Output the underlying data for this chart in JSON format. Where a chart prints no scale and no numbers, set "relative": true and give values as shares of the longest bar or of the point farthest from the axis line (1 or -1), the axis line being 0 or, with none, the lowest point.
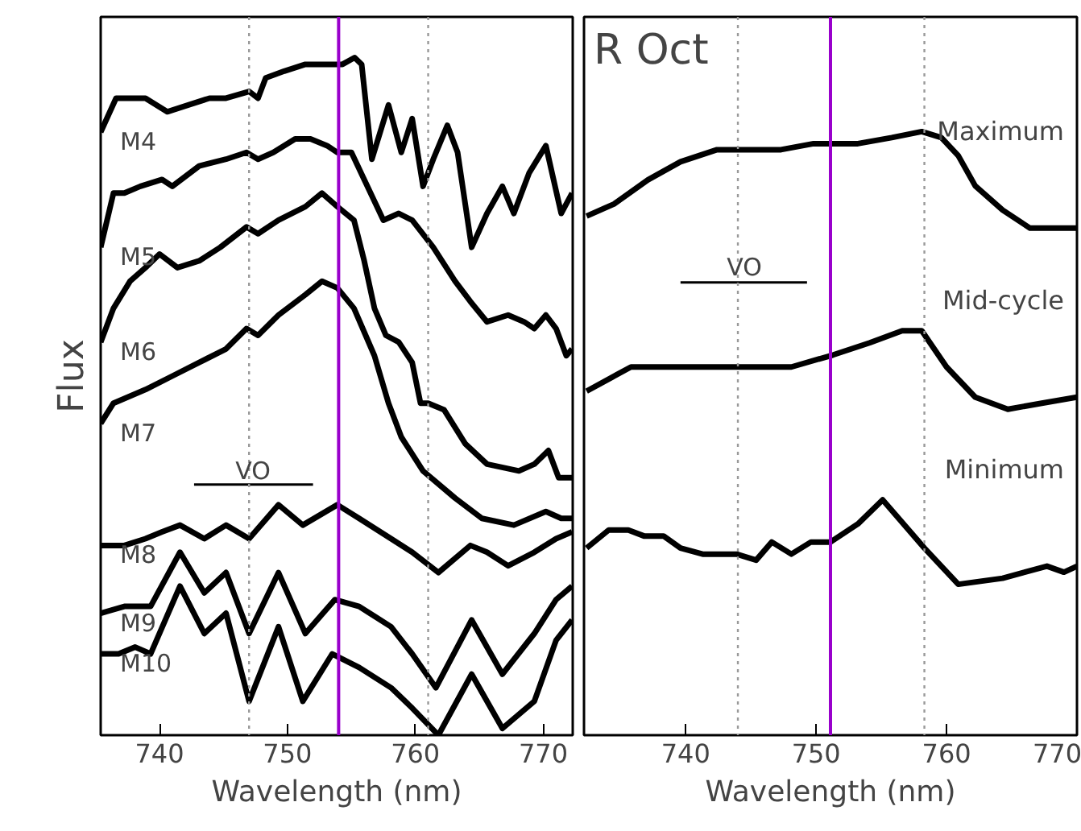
{
  "chart_data": [
    {
      "type": "line",
      "relative": true,
      "xlabel": "Wavelength (nm)",
      "ylabel": "Flux",
      "xlim": [
        735.4,
        772.3
      ],
      "xticks": [
        740,
        750,
        760,
        770
      ],
      "ref_lines": [
        {
          "axis": "x",
          "value": 747.0,
          "color": "#999999",
          "line_style": "dotted"
        },
        {
          "axis": "x",
          "value": 761.0,
          "color": "#999999",
          "line_style": "dotted"
        },
        {
          "axis": "x",
          "value": 754.0,
          "color": "#9900cc",
          "line_style": "solid"
        }
      ],
      "series": [
        {
          "name": "M4",
          "color": "#000000",
          "x": [
            735.4,
            736.6,
            737.25,
            738.9,
            740.6,
            742.25,
            743.9,
            745.2,
            747.0,
            747.7,
            748.3,
            749.75,
            751.4,
            753.1,
            754.3,
            755.25,
            755.8,
            756.6,
            757.9,
            758.9,
            759.75,
            760.6,
            761.4,
            762.5,
            763.3,
            764.4,
            765.6,
            766.8,
            767.7,
            768.9,
            770.2,
            771.4,
            772.25
          ],
          "values": [
            0.89,
            0.94,
            0.94,
            0.94,
            0.92,
            0.93,
            0.94,
            0.94,
            0.95,
            0.94,
            0.97,
            0.98,
            0.99,
            0.99,
            0.99,
            1.0,
            0.99,
            0.85,
            0.93,
            0.86,
            0.91,
            0.81,
            0.85,
            0.9,
            0.86,
            0.72,
            0.77,
            0.81,
            0.77,
            0.83,
            0.87,
            0.77,
            0.8
          ]
        },
        {
          "name": "M5",
          "color": "#000000",
          "x": [
            735.4,
            736.4,
            737.25,
            738.5,
            740.2,
            741.0,
            743.1,
            745.2,
            746.8,
            747.7,
            748.9,
            750.6,
            751.8,
            753.1,
            753.9,
            755.0,
            756.0,
            757.5,
            758.7,
            759.75,
            761.4,
            763.1,
            764.3,
            765.6,
            767.25,
            768.5,
            769.3,
            770.2,
            771.0,
            771.8,
            772.25
          ],
          "values": [
            0.72,
            0.8,
            0.8,
            0.81,
            0.82,
            0.81,
            0.84,
            0.85,
            0.86,
            0.85,
            0.86,
            0.88,
            0.88,
            0.87,
            0.86,
            0.86,
            0.82,
            0.76,
            0.77,
            0.76,
            0.72,
            0.67,
            0.64,
            0.61,
            0.62,
            0.61,
            0.6,
            0.62,
            0.6,
            0.56,
            0.57
          ]
        },
        {
          "name": "M6",
          "color": "#000000",
          "x": [
            735.4,
            736.4,
            737.7,
            738.9,
            740.0,
            741.4,
            743.1,
            744.75,
            746.8,
            747.7,
            749.3,
            751.4,
            752.7,
            753.9,
            755.2,
            756.0,
            756.8,
            757.7,
            758.7,
            759.75,
            760.4,
            761.0,
            762.25,
            763.9,
            765.6,
            768.1,
            769.3,
            770.4,
            771.2,
            772.25
          ],
          "values": [
            0.58,
            0.63,
            0.67,
            0.69,
            0.71,
            0.69,
            0.7,
            0.72,
            0.75,
            0.74,
            0.76,
            0.78,
            0.8,
            0.78,
            0.76,
            0.7,
            0.63,
            0.59,
            0.58,
            0.55,
            0.49,
            0.49,
            0.48,
            0.43,
            0.4,
            0.39,
            0.4,
            0.42,
            0.38,
            0.38
          ]
        },
        {
          "name": "M7",
          "color": "#000000",
          "x": [
            735.4,
            736.4,
            738.9,
            741.0,
            743.1,
            745.2,
            746.8,
            747.7,
            749.3,
            751.4,
            752.7,
            753.9,
            755.2,
            756.8,
            757.9,
            758.9,
            760.6,
            763.1,
            765.2,
            767.7,
            770.2,
            771.4,
            772.25
          ],
          "values": [
            0.46,
            0.49,
            0.51,
            0.53,
            0.55,
            0.57,
            0.6,
            0.59,
            0.62,
            0.65,
            0.67,
            0.66,
            0.63,
            0.56,
            0.49,
            0.44,
            0.39,
            0.35,
            0.32,
            0.31,
            0.33,
            0.32,
            0.32
          ]
        },
        {
          "name": "M8",
          "color": "#000000",
          "x": [
            735.4,
            737.25,
            738.9,
            740.2,
            741.6,
            743.5,
            745.2,
            747.0,
            749.3,
            751.2,
            753.9,
            755.6,
            758.1,
            759.75,
            761.8,
            764.3,
            765.6,
            767.25,
            769.3,
            771.0,
            772.25
          ],
          "values": [
            0.28,
            0.28,
            0.29,
            0.3,
            0.31,
            0.29,
            0.31,
            0.29,
            0.34,
            0.31,
            0.34,
            0.32,
            0.29,
            0.27,
            0.24,
            0.28,
            0.27,
            0.25,
            0.27,
            0.29,
            0.3
          ]
        },
        {
          "name": "M9",
          "color": "#000000",
          "x": [
            735.4,
            737.25,
            739.3,
            741.6,
            743.5,
            745.2,
            747.0,
            749.3,
            751.4,
            753.7,
            755.6,
            758.1,
            759.75,
            761.6,
            764.4,
            766.8,
            769.3,
            771.0,
            772.25
          ],
          "values": [
            0.18,
            0.19,
            0.19,
            0.27,
            0.21,
            0.24,
            0.15,
            0.24,
            0.15,
            0.2,
            0.19,
            0.16,
            0.12,
            0.07,
            0.17,
            0.09,
            0.15,
            0.2,
            0.22
          ]
        },
        {
          "name": "M10",
          "color": "#000000",
          "x": [
            735.4,
            736.8,
            738.1,
            739.3,
            741.6,
            743.5,
            745.2,
            747.0,
            749.3,
            751.2,
            753.5,
            755.6,
            758.1,
            759.75,
            761.8,
            764.4,
            766.8,
            769.3,
            771.0,
            772.25
          ],
          "values": [
            0.12,
            0.12,
            0.13,
            0.12,
            0.22,
            0.15,
            0.18,
            0.05,
            0.16,
            0.05,
            0.12,
            0.1,
            0.07,
            0.04,
            0.0,
            0.09,
            0.01,
            0.05,
            0.14,
            0.17
          ]
        },
        {
          "color": "#000000",
          "x": [
            742.7,
            752.0
          ],
          "values": [
            0.37,
            0.37
          ]
        }
      ],
      "annotations": [
        {
          "text": "VO",
          "x": 747.3,
          "y": 0.39
        }
      ]
    },
    {
      "type": "line",
      "relative": true,
      "title": "R Oct",
      "xlabel": "Wavelength (nm)",
      "xlim": [
        732.2,
        770.0
      ],
      "xticks": [
        740,
        750,
        760,
        770
      ],
      "ref_lines": [
        {
          "axis": "x",
          "value": 744.0,
          "color": "#999999",
          "line_style": "dotted"
        },
        {
          "axis": "x",
          "value": 758.3,
          "color": "#999999",
          "line_style": "dotted"
        },
        {
          "axis": "x",
          "value": 751.1,
          "color": "#9900cc",
          "line_style": "solid"
        }
      ],
      "series": [
        {
          "name": "Maximum",
          "color": "#000000",
          "x": [
            732.4,
            734.5,
            737.1,
            739.6,
            742.4,
            744.7,
            747.3,
            749.8,
            751.3,
            753.2,
            755.8,
            758.1,
            759.6,
            760.9,
            762.2,
            764.3,
            766.4,
            768.1,
            770.0
          ],
          "values": [
            0.86,
            0.88,
            0.92,
            0.95,
            0.97,
            0.97,
            0.97,
            0.98,
            0.98,
            0.98,
            0.99,
            1.0,
            0.99,
            0.96,
            0.91,
            0.87,
            0.84,
            0.84,
            0.84
          ]
        },
        {
          "name": "Mid-cycle",
          "color": "#000000",
          "x": [
            732.4,
            735.8,
            739.6,
            743.9,
            748.1,
            751.3,
            754.1,
            756.6,
            758.1,
            760.0,
            762.2,
            764.7,
            767.3,
            770.0
          ],
          "values": [
            0.57,
            0.61,
            0.61,
            0.61,
            0.61,
            0.63,
            0.65,
            0.67,
            0.67,
            0.61,
            0.56,
            0.54,
            0.55,
            0.56
          ]
        },
        {
          "name": "Minimum",
          "color": "#000000",
          "x": [
            732.4,
            734.1,
            735.6,
            736.8,
            738.3,
            739.6,
            741.3,
            743.9,
            745.4,
            746.6,
            748.1,
            749.6,
            751.1,
            753.2,
            755.1,
            758.3,
            760.9,
            764.3,
            767.7,
            769.0,
            770.0
          ],
          "values": [
            0.31,
            0.34,
            0.34,
            0.33,
            0.33,
            0.31,
            0.3,
            0.3,
            0.29,
            0.32,
            0.3,
            0.32,
            0.32,
            0.35,
            0.39,
            0.31,
            0.25,
            0.26,
            0.28,
            0.27,
            0.28
          ]
        },
        {
          "color": "#000000",
          "x": [
            739.6,
            749.3
          ],
          "values": [
            0.75,
            0.75
          ]
        }
      ],
      "annotations": [
        {
          "text": "VO",
          "x": 744.5,
          "y": 0.775
        }
      ]
    }
  ]
}
